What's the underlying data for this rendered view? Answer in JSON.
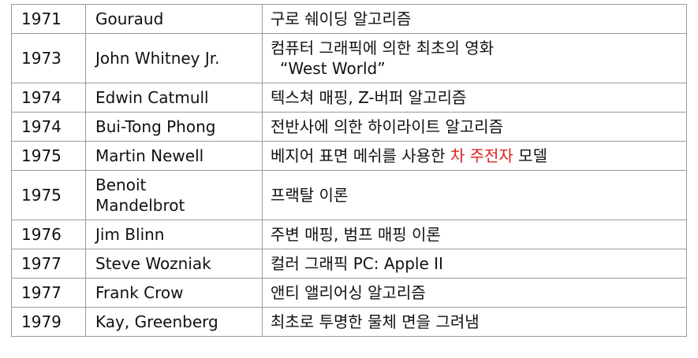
{
  "rows": [
    {
      "year": "1971",
      "name": "Gouraud",
      "desc": "구로 쉐이딩 알고리즘"
    },
    {
      "year": "1973",
      "name": "John Whitney Jr.",
      "desc_line1": "컴퓨터 그래픽에 의한 최초의 영화",
      "desc_line2": "“West World”"
    },
    {
      "year": "1974",
      "name": "Edwin Catmull",
      "desc": "텍스쳐 매핑, Z-버퍼 알고리즘"
    },
    {
      "year": "1974",
      "name": "Bui-Tong Phong",
      "desc": "전반사에 의한 하이라이트 알고리즘"
    },
    {
      "year": "1975",
      "name": "Martin Newell",
      "desc_before": "베지어 표면 메쉬를 사용한 ",
      "desc_highlight": "차 주전자",
      "desc_after": " 모델"
    },
    {
      "year": "1975",
      "name_line1": "Benoit",
      "name_line2": "Mandelbrot",
      "desc": "프랙탈 이론"
    },
    {
      "year": "1976",
      "name": "Jim Blinn",
      "desc": "주변 매핑, 범프 매핑 이론"
    },
    {
      "year": "1977",
      "name": "Steve Wozniak",
      "desc": "컬러 그래픽 PC: Apple II"
    },
    {
      "year": "1977",
      "name": "Frank Crow",
      "desc": "앤티 앨리어싱 알고리즘"
    },
    {
      "year": "1979",
      "name": "Kay, Greenberg",
      "desc": "최초로 투명한 물체 면을 그려냄"
    }
  ],
  "colors": {
    "highlight": "#e02020",
    "border": "#9a9a9a",
    "text": "#111111"
  }
}
